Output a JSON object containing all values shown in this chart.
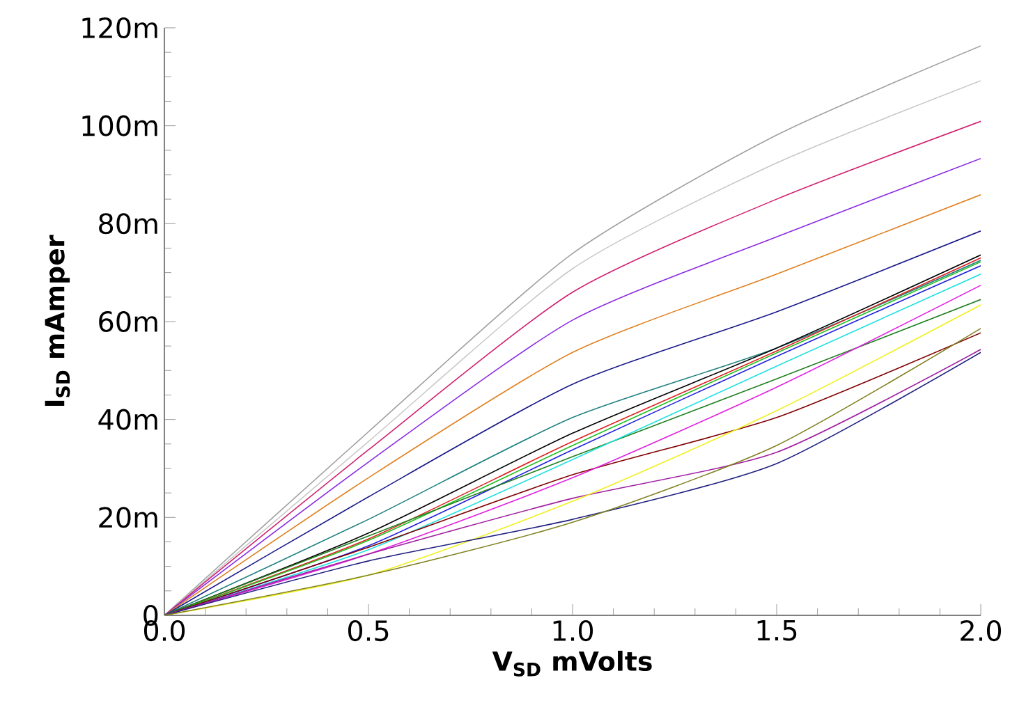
{
  "chart_data": {
    "type": "line",
    "xlabel": "V$_{SD}$ mVolts",
    "ylabel": "I$_{SD}$ mAmper",
    "xlim": [
      0,
      2
    ],
    "ylim": [
      0,
      120
    ],
    "xticks": [
      {
        "value": 0,
        "label": "0.0"
      },
      {
        "value": 0.5,
        "label": "0.5"
      },
      {
        "value": 1,
        "label": "1.0"
      },
      {
        "value": 1.5,
        "label": "1.5"
      },
      {
        "value": 2,
        "label": "2.0"
      }
    ],
    "yticks": [
      {
        "value": 0,
        "label": "0"
      },
      {
        "value": 20,
        "label": "20m"
      },
      {
        "value": 40,
        "label": "40m"
      },
      {
        "value": 60,
        "label": "60m"
      },
      {
        "value": 80,
        "label": "80m"
      },
      {
        "value": 100,
        "label": "100m"
      },
      {
        "value": 120,
        "label": "120m"
      }
    ],
    "grid": false,
    "legend": false,
    "marker": "none",
    "line_style": "solid",
    "x": [
      0,
      0.5,
      1,
      1.5,
      2
    ],
    "series": [
      {
        "color": "#a0a0a0",
        "values": [
          0,
          37.5,
          73.9,
          98.1,
          116.3
        ]
      },
      {
        "color": "#c8c8c8",
        "values": [
          0,
          35.5,
          70.8,
          92.4,
          109.2
        ]
      },
      {
        "color": "#d0206f",
        "values": [
          0,
          33.8,
          66,
          85,
          100.9
        ]
      },
      {
        "color": "#8a2be2",
        "values": [
          0,
          31.3,
          60.3,
          77.3,
          93.3
        ]
      },
      {
        "color": "#e08020",
        "values": [
          0,
          28.1,
          53.7,
          69.7,
          85.9
        ]
      },
      {
        "color": "#1a1a8a",
        "values": [
          0,
          24.2,
          47.2,
          62,
          78.5
        ]
      },
      {
        "color": "#208080",
        "values": [
          0,
          19.6,
          40.4,
          54.6,
          72.5
        ]
      },
      {
        "color": "#000000",
        "values": [
          0,
          16.8,
          37.2,
          54.6,
          73.6
        ]
      },
      {
        "color": "#e02020",
        "values": [
          0,
          15.6,
          35.5,
          54,
          73
        ]
      },
      {
        "color": "#20c020",
        "values": [
          0,
          15.3,
          34.7,
          53.6,
          72.2
        ]
      },
      {
        "color": "#2020e0",
        "values": [
          0,
          14.2,
          33.8,
          52.9,
          71.4
        ]
      },
      {
        "color": "#208020",
        "values": [
          0,
          16.2,
          32.4,
          48.3,
          64.5
        ]
      },
      {
        "color": "#20e0e0",
        "values": [
          0,
          13.4,
          31.8,
          50.9,
          69.7
        ]
      },
      {
        "color": "#800000",
        "values": [
          0,
          13.9,
          28.7,
          40.4,
          57.7
        ]
      },
      {
        "color": "#e020e0",
        "values": [
          0,
          12.5,
          28.1,
          46.6,
          67.4
        ]
      },
      {
        "color": "#a020a0",
        "values": [
          0,
          12.5,
          23.9,
          33.3,
          54.3
        ]
      },
      {
        "color": "#f0f020",
        "values": [
          0,
          8.2,
          23.3,
          41.8,
          63.4
        ]
      },
      {
        "color": "#202080",
        "values": [
          0,
          11.1,
          19.6,
          31,
          53.7
        ]
      },
      {
        "color": "#808020",
        "values": [
          0,
          8.2,
          19,
          34.7,
          58.6
        ]
      }
    ]
  }
}
